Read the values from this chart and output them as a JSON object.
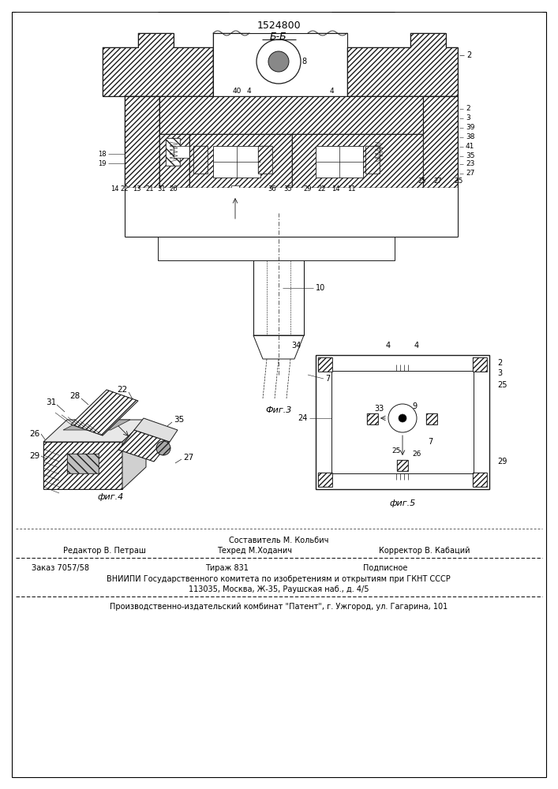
{
  "patent_number": "1524800",
  "section_label": "Б-Б",
  "fig3_label": "Фиг.3",
  "fig4_label": "фиг.4",
  "fig5_label": "фиг.5",
  "composer_line": "Составитель М. Кольбич",
  "editor_line": "Редактор В. Петраш",
  "techred_line": "Техред М.Ходанич",
  "corrector_line": "Корректор В. Кабаций",
  "order_line": "Заказ 7057/58",
  "tirazh_line": "Тираж 831",
  "podpisnoe_line": "Подписное",
  "vniip_line": "ВНИИПИ Государственного комитета по изобретениям и открытиям при ГКНТ СССР",
  "address_line": "113035, Москва, Ж-35, Раушская наб., д. 4/5",
  "publisher_line": "Производственно-издательский комбинат \"Патент\", г. Ужгород, ул. Гагарина, 101",
  "bg_color": "#ffffff",
  "lc": "#1a1a1a"
}
